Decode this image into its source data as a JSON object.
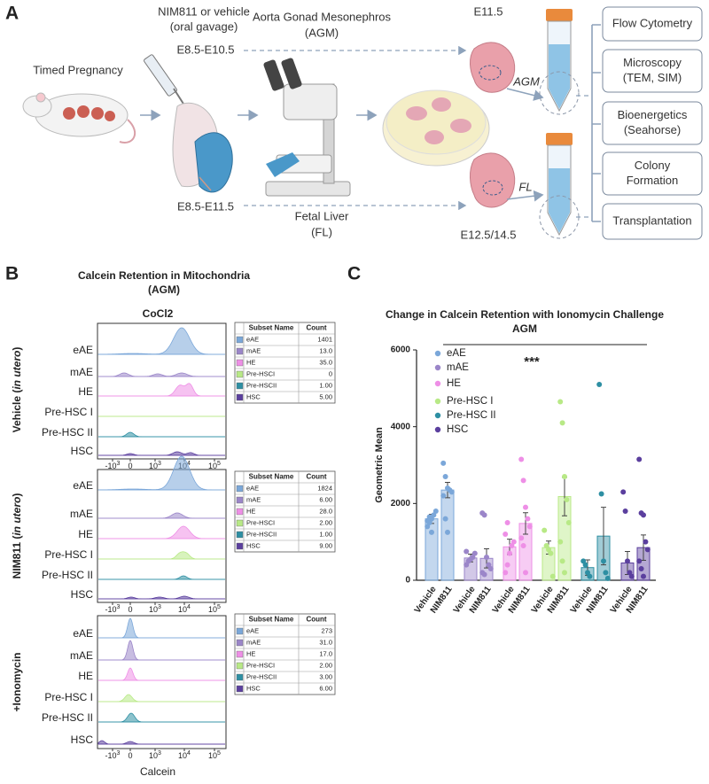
{
  "panel_a": {
    "label": "A",
    "timed_pregnancy": "Timed Pregnancy",
    "treatment": [
      "NIM811 or vehicle",
      "(oral gavage)"
    ],
    "treatment_window": "E8.5-E10.5",
    "harvest_window": "E8.5-E11.5",
    "agm": [
      "Aorta Gonad Mesonephros",
      "(AGM)"
    ],
    "fl": [
      "Fetal Liver",
      "(FL)"
    ],
    "agm_stage": "E11.5",
    "fl_stage": "E12.5/14.5",
    "agm_tag": "AGM",
    "fl_tag": "FL",
    "assays": [
      [
        "Flow Cytometry"
      ],
      [
        "Microscopy",
        "(TEM, SIM)"
      ],
      [
        "Bioenergetics",
        "(Seahorse)"
      ],
      [
        "Colony",
        "Formation"
      ],
      [
        "Transplantation"
      ]
    ]
  },
  "panel_b": {
    "label": "B",
    "title": [
      "Calcein Retention in Mitochondria",
      "(AGM)"
    ],
    "condition": "CoCl2",
    "x_label": "Calcein",
    "x_ticks": [
      {
        "base": "-10",
        "exp": "3"
      },
      {
        "base": "0"
      },
      {
        "base": "10",
        "exp": "3"
      },
      {
        "base": "10",
        "exp": "4"
      },
      {
        "base": "10",
        "exp": "5"
      }
    ],
    "table_header": [
      "Subset Name",
      "Count"
    ],
    "groups": [
      {
        "label": [
          "Vehicle (",
          "in utero",
          ")"
        ],
        "rows": [
          "eAE",
          "mAE",
          "HE",
          "Pre-HSC I",
          "Pre-HSC II",
          "HSC"
        ],
        "table": [
          [
            "eAE",
            "1401"
          ],
          [
            "mAE",
            "13.0"
          ],
          [
            "HE",
            "35.0"
          ],
          [
            "Pre-HSCI",
            "0"
          ],
          [
            "Pre-HSCII",
            "1.00"
          ],
          [
            "HSC",
            "5.00"
          ]
        ]
      },
      {
        "label": [
          "NIM811 (",
          "in utero",
          ")"
        ],
        "rows": [
          "eAE",
          "mAE",
          "HE",
          "Pre-HSC I",
          "Pre-HSC II",
          "HSC"
        ],
        "table": [
          [
            "eAE",
            "1824"
          ],
          [
            "mAE",
            "6.00"
          ],
          [
            "HE",
            "28.0"
          ],
          [
            "Pre-HSCI",
            "2.00"
          ],
          [
            "Pre-HSCII",
            "1.00"
          ],
          [
            "HSC",
            "9.00"
          ]
        ]
      },
      {
        "label": [
          "+Ionomycin"
        ],
        "rows": [
          "eAE",
          "mAE",
          "HE",
          "Pre-HSC I",
          "Pre-HSC II",
          "HSC"
        ],
        "table": [
          [
            "eAE",
            "273"
          ],
          [
            "mAE",
            "31.0"
          ],
          [
            "HE",
            "17.0"
          ],
          [
            "Pre-HSCI",
            "2.00"
          ],
          [
            "Pre-HSCII",
            "3.00"
          ],
          [
            "HSC",
            "6.00"
          ]
        ]
      }
    ]
  },
  "panel_c_label": "C",
  "chart_data": {
    "type": "bar",
    "title": "Change in Calcein Retention with Ionomycin Challenge",
    "subtitle": "AGM",
    "ylabel": "Geometric Mean",
    "annotation": "***",
    "x_labels": [
      "Vehicle",
      "NIM811"
    ],
    "ylim": [
      0,
      6000
    ],
    "yticks": [
      0,
      2000,
      4000,
      6000
    ],
    "series": [
      {
        "name": "eAE",
        "color": "#7ba7d9",
        "values": [
          1600,
          2350
        ],
        "errors": [
          120,
          200
        ],
        "points": [
          [
            1400,
            1500,
            1600,
            1700,
            1800,
            1550,
            1650,
            1250
          ],
          [
            3050,
            2700,
            2400,
            2350,
            2300,
            2200,
            1600,
            1250
          ]
        ]
      },
      {
        "name": "mAE",
        "color": "#9b86c9",
        "values": [
          580,
          570
        ],
        "errors": [
          100,
          250
        ],
        "points": [
          [
            400,
            500,
            550,
            600,
            700,
            750
          ],
          [
            1750,
            1700,
            600,
            400,
            300,
            200,
            150
          ]
        ]
      },
      {
        "name": "HE",
        "color": "#ee8fe6",
        "values": [
          870,
          1480
        ],
        "errors": [
          200,
          280
        ],
        "points": [
          [
            200,
            400,
            700,
            900,
            1000,
            1200,
            1500
          ],
          [
            3150,
            2600,
            1900,
            1600,
            1400,
            1100,
            900,
            200
          ]
        ]
      },
      {
        "name": "Pre-HSC I",
        "color": "#b8e986",
        "values": [
          850,
          2180
        ],
        "errors": [
          170,
          500
        ],
        "points": [
          [
            1300,
            900,
            800,
            700,
            100
          ],
          [
            4650,
            4100,
            2700,
            2100,
            1500,
            1000,
            500,
            200
          ]
        ]
      },
      {
        "name": "Pre-HSC II",
        "color": "#2e8fa3",
        "values": [
          330,
          1150
        ],
        "errors": [
          200,
          750
        ],
        "points": [
          [
            500,
            400,
            200,
            100
          ],
          [
            5100,
            2250,
            500,
            200,
            50
          ]
        ]
      },
      {
        "name": "HSC",
        "color": "#5b3f9e",
        "values": [
          450,
          850
        ],
        "errors": [
          300,
          330
        ],
        "points": [
          [
            2300,
            1800,
            500,
            200,
            100
          ],
          [
            3150,
            1750,
            1700,
            1000,
            800,
            500,
            300,
            100
          ]
        ]
      }
    ]
  }
}
